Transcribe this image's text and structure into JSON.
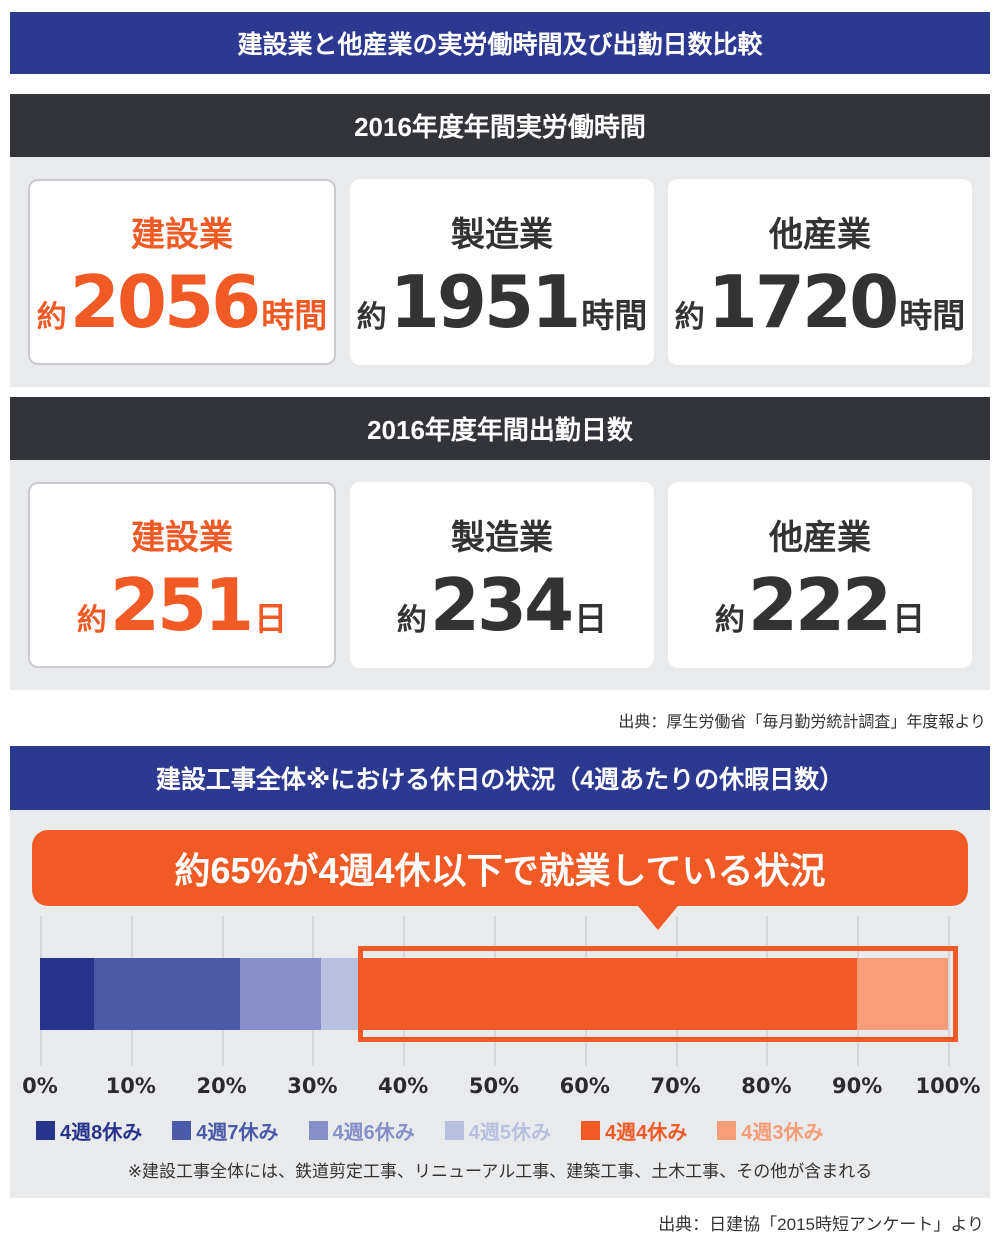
{
  "header": {
    "title": "建設業と他産業の実労働時間及び出勤日数比較"
  },
  "hours_section": {
    "title": "2016年度年間実労働時間",
    "cards": [
      {
        "label": "建設業",
        "approx": "約",
        "value": "2056",
        "unit": "時間"
      },
      {
        "label": "製造業",
        "approx": "約",
        "value": "1951",
        "unit": "時間"
      },
      {
        "label": "他産業",
        "approx": "約",
        "value": "1720",
        "unit": "時間"
      }
    ]
  },
  "days_section": {
    "title": "2016年度年間出勤日数",
    "cards": [
      {
        "label": "建設業",
        "approx": "約",
        "value": "251",
        "unit": "日"
      },
      {
        "label": "製造業",
        "approx": "約",
        "value": "234",
        "unit": "日"
      },
      {
        "label": "他産業",
        "approx": "約",
        "value": "222",
        "unit": "日"
      }
    ]
  },
  "source_hours": "出典：厚生労働省「毎月勤労統計調査」年度報より",
  "holiday_section": {
    "title": "建設工事全体※における休日の状況（4週あたりの休暇日数）",
    "banner": "約65%が4週4休以下で就業している状況",
    "footnote": "※建設工事全体には、鉄道剪定工事、リニューアル工事、建築工事、土木工事、その他が含まれる",
    "source": "出典：日建協「2015時短アンケート」より"
  },
  "chart_data": {
    "type": "bar",
    "orientation": "horizontal",
    "stacked": true,
    "unit": "%",
    "title": "建設工事全体における休日の状況（4週あたりの休暇日数）",
    "series": [
      {
        "name": "4週8休み",
        "value": 6,
        "color": "#27348b"
      },
      {
        "name": "4週7休み",
        "value": 16,
        "color": "#4a5aa8"
      },
      {
        "name": "4週6休み",
        "value": 9,
        "color": "#8590c8"
      },
      {
        "name": "4週5休み",
        "value": 4,
        "color": "#b8c0e0"
      },
      {
        "name": "4週4休み",
        "value": 55,
        "color": "#f15a24"
      },
      {
        "name": "4週3休み",
        "value": 10,
        "color": "#f79d78"
      }
    ],
    "x_ticks": [
      "0%",
      "10%",
      "20%",
      "30%",
      "40%",
      "50%",
      "60%",
      "70%",
      "80%",
      "90%",
      "100%"
    ],
    "xlim": [
      0,
      100
    ],
    "grid": true,
    "legend_position": "bottom",
    "highlight": {
      "from": 35,
      "to": 100,
      "label": "約65%が4週4休以下で就業している状況"
    }
  },
  "colors": {
    "navy_header": "#2b3a90",
    "charcoal_header": "#32343a",
    "accent_orange": "#f15a24",
    "band_gray": "#e9eaec",
    "text_dark": "#333333"
  }
}
